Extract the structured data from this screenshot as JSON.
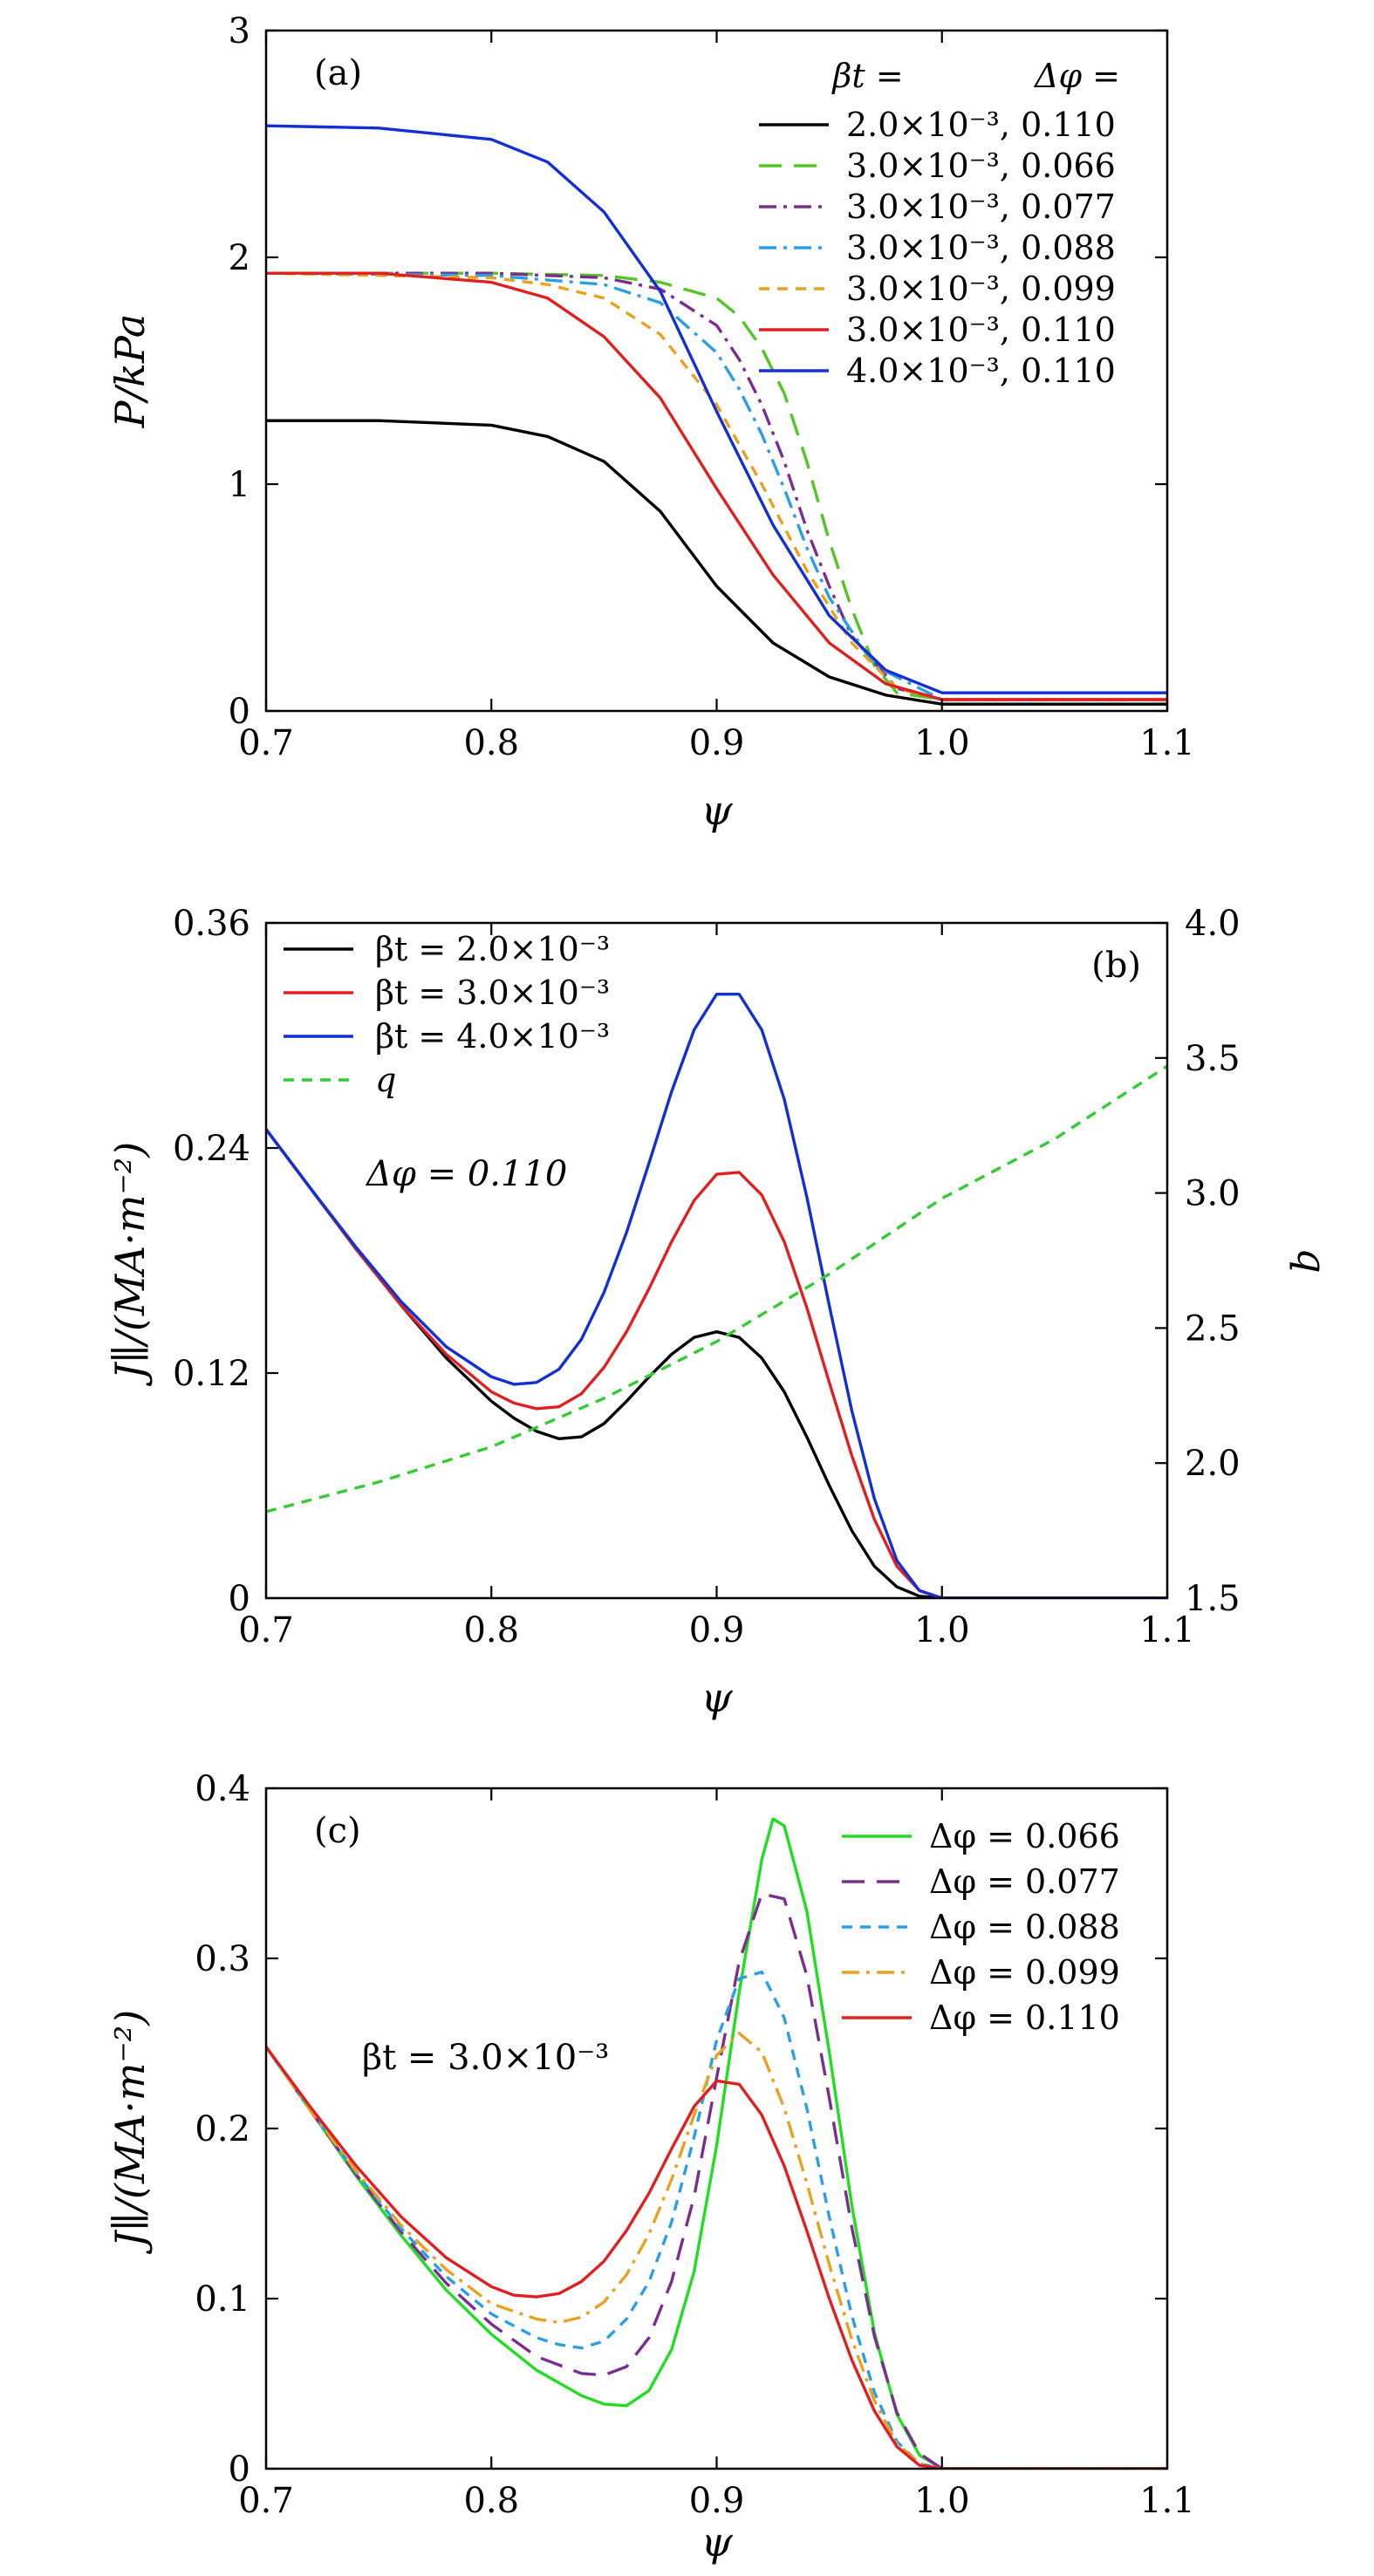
{
  "chart_data": [
    {
      "panel": "(a)",
      "type": "line",
      "xlabel": "ψ",
      "ylabel": "P/kPa",
      "xlim": [
        0.7,
        1.1
      ],
      "ylim": [
        0,
        3
      ],
      "xticks": [
        "0.7",
        "0.8",
        "0.9",
        "1.0",
        "1.1"
      ],
      "yticks": [
        "0",
        "1",
        "2",
        "3"
      ],
      "legend_position": "top-right",
      "legend_header": [
        "βt =",
        "Δφ ="
      ],
      "series": [
        {
          "name": "2.0×10⁻³, 0.110",
          "color": "#000000",
          "dash": "solid",
          "x": [
            0.7,
            0.75,
            0.8,
            0.825,
            0.85,
            0.875,
            0.9,
            0.925,
            0.95,
            0.975,
            1.0,
            1.05,
            1.1
          ],
          "y": [
            1.28,
            1.28,
            1.26,
            1.21,
            1.1,
            0.88,
            0.55,
            0.3,
            0.15,
            0.07,
            0.03,
            0.03,
            0.03
          ]
        },
        {
          "name": "3.0×10⁻³, 0.066",
          "color": "#55c425",
          "dash": "long-dash",
          "x": [
            0.7,
            0.8,
            0.85,
            0.875,
            0.9,
            0.91,
            0.92,
            0.93,
            0.94,
            0.95,
            0.96,
            0.97,
            0.98,
            1.0,
            1.05,
            1.1
          ],
          "y": [
            1.93,
            1.93,
            1.92,
            1.89,
            1.82,
            1.74,
            1.6,
            1.4,
            1.1,
            0.75,
            0.45,
            0.2,
            0.08,
            0.05,
            0.05,
            0.05
          ]
        },
        {
          "name": "3.0×10⁻³, 0.077",
          "color": "#7a2e8e",
          "dash": "dash-dot",
          "x": [
            0.7,
            0.8,
            0.85,
            0.875,
            0.9,
            0.91,
            0.92,
            0.93,
            0.94,
            0.95,
            0.96,
            0.98,
            1.0,
            1.05,
            1.1
          ],
          "y": [
            1.93,
            1.93,
            1.91,
            1.86,
            1.7,
            1.55,
            1.35,
            1.1,
            0.8,
            0.55,
            0.33,
            0.1,
            0.05,
            0.05,
            0.05
          ]
        },
        {
          "name": "3.0×10⁻³, 0.088",
          "color": "#2aa0e0",
          "dash": "dash-dot",
          "x": [
            0.7,
            0.8,
            0.85,
            0.875,
            0.9,
            0.91,
            0.92,
            0.93,
            0.94,
            0.95,
            0.97,
            1.0,
            1.05,
            1.1
          ],
          "y": [
            1.93,
            1.92,
            1.88,
            1.8,
            1.58,
            1.42,
            1.22,
            0.98,
            0.72,
            0.5,
            0.2,
            0.05,
            0.05,
            0.05
          ]
        },
        {
          "name": "3.0×10⁻³, 0.099",
          "color": "#e8a21e",
          "dash": "short-dash",
          "x": [
            0.7,
            0.8,
            0.825,
            0.85,
            0.875,
            0.9,
            0.92,
            0.94,
            0.96,
            0.98,
            1.0,
            1.05,
            1.1
          ],
          "y": [
            1.93,
            1.91,
            1.88,
            1.82,
            1.66,
            1.35,
            1.0,
            0.62,
            0.3,
            0.1,
            0.05,
            0.05,
            0.05
          ]
        },
        {
          "name": "3.0×10⁻³, 0.110",
          "color": "#e02020",
          "dash": "solid",
          "x": [
            0.7,
            0.75,
            0.8,
            0.825,
            0.85,
            0.875,
            0.9,
            0.925,
            0.95,
            0.975,
            1.0,
            1.05,
            1.1
          ],
          "y": [
            1.93,
            1.93,
            1.89,
            1.82,
            1.65,
            1.38,
            0.98,
            0.6,
            0.3,
            0.12,
            0.05,
            0.05,
            0.05
          ]
        },
        {
          "name": "4.0×10⁻³, 0.110",
          "color": "#1530d0",
          "dash": "solid",
          "x": [
            0.7,
            0.75,
            0.8,
            0.825,
            0.85,
            0.875,
            0.9,
            0.925,
            0.95,
            0.975,
            1.0,
            1.05,
            1.1
          ],
          "y": [
            2.58,
            2.57,
            2.52,
            2.42,
            2.2,
            1.85,
            1.32,
            0.82,
            0.42,
            0.18,
            0.08,
            0.08,
            0.08
          ]
        }
      ]
    },
    {
      "panel": "(b)",
      "type": "line",
      "xlabel": "ψ",
      "ylabel": "J∥/(MA·m⁻²)",
      "y2label": "q",
      "xlim": [
        0.7,
        1.1
      ],
      "ylim": [
        0,
        0.36
      ],
      "y2lim": [
        1.5,
        4.0
      ],
      "xticks": [
        "0.7",
        "0.8",
        "0.9",
        "1.0",
        "1.1"
      ],
      "yticks": [
        "0",
        "0.12",
        "0.24",
        "0.36"
      ],
      "y2ticks": [
        "1.5",
        "2.0",
        "2.5",
        "3.0",
        "3.5",
        "4.0"
      ],
      "legend_position": "top-left",
      "annotation": "Δφ = 0.110",
      "series": [
        {
          "name": "βt = 2.0×10⁻³",
          "color": "#000000",
          "dash": "solid",
          "axis": "left",
          "x": [
            0.7,
            0.72,
            0.74,
            0.76,
            0.78,
            0.8,
            0.81,
            0.82,
            0.83,
            0.84,
            0.85,
            0.86,
            0.87,
            0.88,
            0.89,
            0.9,
            0.91,
            0.92,
            0.93,
            0.94,
            0.95,
            0.96,
            0.97,
            0.98,
            0.99,
            1.0,
            1.05,
            1.1
          ],
          "y": [
            0.25,
            0.218,
            0.186,
            0.156,
            0.128,
            0.105,
            0.096,
            0.089,
            0.085,
            0.086,
            0.093,
            0.105,
            0.118,
            0.13,
            0.139,
            0.142,
            0.139,
            0.128,
            0.11,
            0.086,
            0.06,
            0.036,
            0.017,
            0.006,
            0.001,
            0,
            0,
            0
          ]
        },
        {
          "name": "βt = 3.0×10⁻³",
          "color": "#e02020",
          "dash": "solid",
          "axis": "left",
          "x": [
            0.7,
            0.72,
            0.74,
            0.76,
            0.78,
            0.8,
            0.81,
            0.82,
            0.83,
            0.84,
            0.85,
            0.86,
            0.87,
            0.88,
            0.89,
            0.9,
            0.91,
            0.92,
            0.93,
            0.94,
            0.95,
            0.96,
            0.97,
            0.98,
            0.99,
            1.0,
            1.05,
            1.1
          ],
          "y": [
            0.25,
            0.218,
            0.186,
            0.156,
            0.13,
            0.11,
            0.104,
            0.101,
            0.102,
            0.109,
            0.123,
            0.142,
            0.165,
            0.19,
            0.212,
            0.226,
            0.227,
            0.215,
            0.19,
            0.155,
            0.115,
            0.076,
            0.042,
            0.017,
            0.004,
            0,
            0,
            0
          ]
        },
        {
          "name": "βt = 4.0×10⁻³",
          "color": "#1530d0",
          "dash": "solid",
          "axis": "left",
          "x": [
            0.7,
            0.72,
            0.74,
            0.76,
            0.78,
            0.8,
            0.81,
            0.82,
            0.83,
            0.84,
            0.85,
            0.86,
            0.87,
            0.88,
            0.89,
            0.9,
            0.91,
            0.92,
            0.93,
            0.94,
            0.95,
            0.96,
            0.97,
            0.98,
            0.99,
            1.0,
            1.05,
            1.1
          ],
          "y": [
            0.25,
            0.218,
            0.187,
            0.158,
            0.134,
            0.118,
            0.114,
            0.115,
            0.122,
            0.138,
            0.163,
            0.195,
            0.232,
            0.27,
            0.303,
            0.322,
            0.322,
            0.303,
            0.266,
            0.214,
            0.156,
            0.1,
            0.053,
            0.02,
            0.004,
            0,
            0,
            0
          ]
        },
        {
          "name": "q",
          "color": "#33cc33",
          "dash": "short-dash",
          "axis": "right",
          "x": [
            0.7,
            0.75,
            0.8,
            0.85,
            0.9,
            0.95,
            1.0,
            1.05,
            1.1
          ],
          "y": [
            1.82,
            1.93,
            2.06,
            2.24,
            2.45,
            2.7,
            2.98,
            3.2,
            3.47
          ]
        }
      ]
    },
    {
      "panel": "(c)",
      "type": "line",
      "xlabel": "ψ",
      "ylabel": "J∥/(MA·m⁻²)",
      "xlim": [
        0.7,
        1.1
      ],
      "ylim": [
        0,
        0.4
      ],
      "xticks": [
        "0.7",
        "0.8",
        "0.9",
        "1.0",
        "1.1"
      ],
      "yticks": [
        "0",
        "0.1",
        "0.2",
        "0.3",
        "0.4"
      ],
      "legend_position": "top-right",
      "annotation": "βt = 3.0×10⁻³",
      "series": [
        {
          "name": "Δφ = 0.066",
          "color": "#22dd22",
          "dash": "solid",
          "x": [
            0.7,
            0.72,
            0.74,
            0.76,
            0.78,
            0.8,
            0.82,
            0.84,
            0.85,
            0.86,
            0.87,
            0.88,
            0.89,
            0.9,
            0.91,
            0.92,
            0.925,
            0.93,
            0.94,
            0.95,
            0.96,
            0.97,
            0.98,
            0.99,
            1.0,
            1.05,
            1.1
          ],
          "y": [
            0.248,
            0.21,
            0.172,
            0.137,
            0.105,
            0.079,
            0.058,
            0.043,
            0.038,
            0.037,
            0.046,
            0.07,
            0.116,
            0.19,
            0.28,
            0.358,
            0.382,
            0.378,
            0.328,
            0.245,
            0.155,
            0.08,
            0.032,
            0.008,
            0,
            0,
            0
          ]
        },
        {
          "name": "Δφ = 0.077",
          "color": "#7a2e8e",
          "dash": "long-dash",
          "x": [
            0.7,
            0.72,
            0.74,
            0.76,
            0.78,
            0.8,
            0.82,
            0.84,
            0.85,
            0.86,
            0.87,
            0.88,
            0.89,
            0.9,
            0.91,
            0.92,
            0.93,
            0.94,
            0.95,
            0.96,
            0.97,
            0.98,
            0.99,
            1.0,
            1.05,
            1.1
          ],
          "y": [
            0.248,
            0.21,
            0.173,
            0.139,
            0.109,
            0.085,
            0.066,
            0.056,
            0.055,
            0.06,
            0.077,
            0.11,
            0.16,
            0.23,
            0.298,
            0.338,
            0.335,
            0.29,
            0.218,
            0.142,
            0.078,
            0.033,
            0.009,
            0,
            0,
            0
          ]
        },
        {
          "name": "Δφ = 0.088",
          "color": "#2aa0e0",
          "dash": "short-dash",
          "x": [
            0.7,
            0.72,
            0.74,
            0.76,
            0.78,
            0.8,
            0.82,
            0.83,
            0.84,
            0.85,
            0.86,
            0.87,
            0.88,
            0.89,
            0.9,
            0.91,
            0.92,
            0.93,
            0.94,
            0.95,
            0.96,
            0.97,
            0.98,
            0.99,
            1.0,
            1.05,
            1.1
          ],
          "y": [
            0.248,
            0.21,
            0.174,
            0.141,
            0.113,
            0.091,
            0.077,
            0.073,
            0.071,
            0.075,
            0.088,
            0.11,
            0.145,
            0.195,
            0.252,
            0.288,
            0.292,
            0.265,
            0.212,
            0.148,
            0.09,
            0.045,
            0.016,
            0.003,
            0,
            0,
            0
          ]
        },
        {
          "name": "Δφ = 0.099",
          "color": "#e8a21e",
          "dash": "dash-dot",
          "x": [
            0.7,
            0.72,
            0.74,
            0.76,
            0.78,
            0.8,
            0.82,
            0.83,
            0.84,
            0.85,
            0.86,
            0.87,
            0.88,
            0.89,
            0.9,
            0.91,
            0.92,
            0.93,
            0.94,
            0.95,
            0.96,
            0.97,
            0.98,
            0.99,
            1.0,
            1.05,
            1.1
          ],
          "y": [
            0.248,
            0.21,
            0.175,
            0.143,
            0.117,
            0.097,
            0.088,
            0.086,
            0.089,
            0.098,
            0.114,
            0.138,
            0.17,
            0.208,
            0.243,
            0.256,
            0.245,
            0.212,
            0.168,
            0.12,
            0.076,
            0.04,
            0.015,
            0.003,
            0,
            0,
            0
          ]
        },
        {
          "name": "Δφ = 0.110",
          "color": "#e02020",
          "dash": "solid",
          "x": [
            0.7,
            0.72,
            0.74,
            0.76,
            0.78,
            0.8,
            0.81,
            0.82,
            0.83,
            0.84,
            0.85,
            0.86,
            0.87,
            0.88,
            0.89,
            0.9,
            0.91,
            0.92,
            0.93,
            0.94,
            0.95,
            0.96,
            0.97,
            0.98,
            0.99,
            1.0,
            1.05,
            1.1
          ],
          "y": [
            0.248,
            0.212,
            0.178,
            0.148,
            0.124,
            0.107,
            0.102,
            0.101,
            0.103,
            0.11,
            0.122,
            0.14,
            0.162,
            0.188,
            0.213,
            0.228,
            0.226,
            0.208,
            0.178,
            0.14,
            0.1,
            0.064,
            0.034,
            0.013,
            0.002,
            0,
            0,
            0
          ]
        }
      ]
    }
  ]
}
